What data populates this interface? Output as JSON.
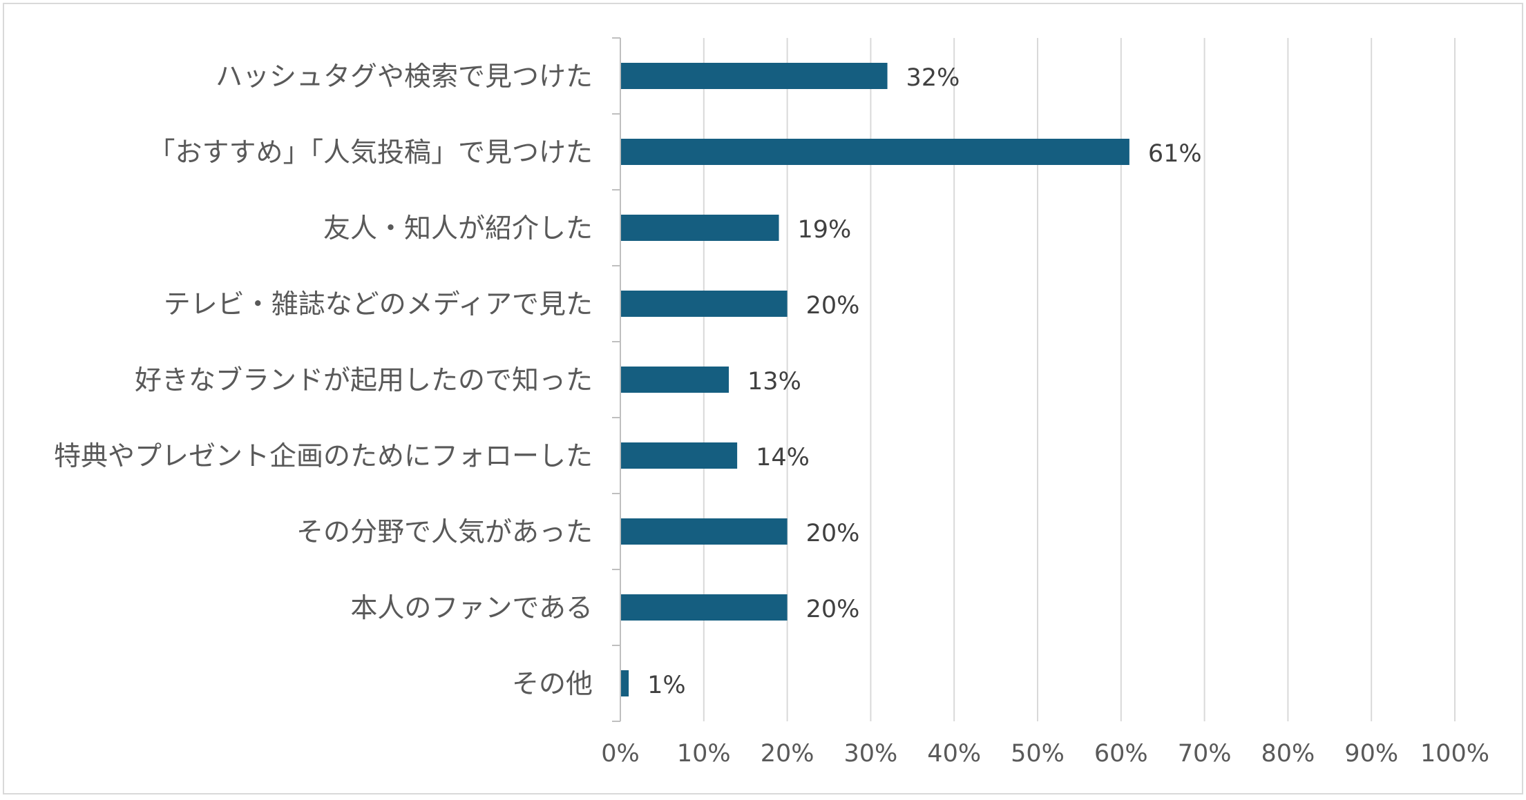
{
  "chart_data": {
    "type": "bar",
    "orientation": "horizontal",
    "categories": [
      "ハッシュタグや検索で見つけた",
      "「おすすめ」「人気投稿」で見つけた",
      "友人・知人が紹介した",
      "テレビ・雑誌などのメディアで見た",
      "好きなブランドが起用したので知った",
      "特典やプレゼント企画のためにフォローした",
      "その分野で人気があった",
      "本人のファンである",
      "その他"
    ],
    "values": [
      32,
      61,
      19,
      20,
      13,
      14,
      20,
      20,
      1
    ],
    "data_labels": [
      "32%",
      "61%",
      "19%",
      "20%",
      "13%",
      "14%",
      "20%",
      "20%",
      "1%"
    ],
    "x_ticks": [
      0,
      10,
      20,
      30,
      40,
      50,
      60,
      70,
      80,
      90,
      100
    ],
    "x_tick_labels": [
      "0%",
      "10%",
      "20%",
      "30%",
      "40%",
      "50%",
      "60%",
      "70%",
      "80%",
      "90%",
      "100%"
    ],
    "xlim": [
      0,
      100
    ],
    "title": "",
    "xlabel": "",
    "ylabel": "",
    "grid": "vertical",
    "legend": "none",
    "colors": {
      "bar": "#155e80",
      "grid": "#d9d9d9",
      "axis": "#bfbfbf",
      "category_text": "#595959",
      "label_text": "#404040",
      "tick_text": "#595959",
      "border": "#d9d9d9"
    }
  }
}
